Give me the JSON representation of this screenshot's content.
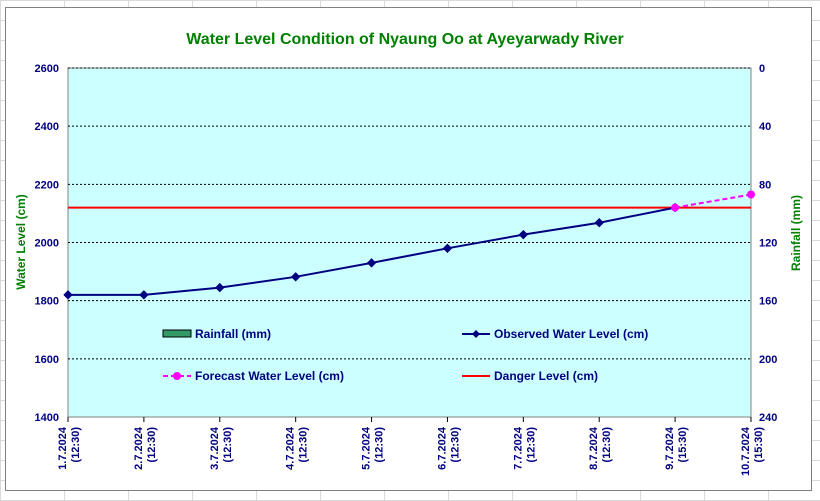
{
  "chart_data": {
    "type": "line",
    "title": "Water Level Condition of Nyaung Oo at Ayeyarwady River",
    "ylabel": "Water Level (cm)",
    "y2label": "Rainfall (mm)",
    "ylim": [
      1400,
      2600
    ],
    "yticks": [
      "1400",
      "1600",
      "1800",
      "2000",
      "2200",
      "2400",
      "2600"
    ],
    "y2lim": [
      0,
      240
    ],
    "y2_inverted": true,
    "y2ticks": [
      "0",
      "40",
      "80",
      "120",
      "160",
      "200",
      "240"
    ],
    "categories": [
      [
        "1.7.2024",
        "(12:30)"
      ],
      [
        "2.7.2024",
        "(12:30)"
      ],
      [
        "3.7.2024",
        "(12:30)"
      ],
      [
        "4.7.2024",
        "(12:30)"
      ],
      [
        "5.7.2024",
        "(12:30)"
      ],
      [
        "6.7.2024",
        "(12:30)"
      ],
      [
        "7.7.2024",
        "(12:30)"
      ],
      [
        "8.7.2024",
        "(12:30)"
      ],
      [
        "9.7.2024",
        "(15:30)"
      ],
      [
        "10.7.2024",
        "(15:30)"
      ]
    ],
    "grid": true,
    "plot_background": "#ccffff",
    "series": [
      {
        "name": "Rainfall (mm)",
        "kind": "bar",
        "color": "#339966",
        "values": [
          null,
          null,
          null,
          null,
          null,
          null,
          null,
          null,
          null,
          null
        ]
      },
      {
        "name": "Observed Water Level (cm)",
        "kind": "line",
        "color": "#000080",
        "marker": "diamond",
        "values": [
          1820,
          1820,
          1845,
          1882,
          1930,
          1980,
          2027,
          2068,
          2120,
          null
        ]
      },
      {
        "name": "Forecast Water Level (cm)",
        "kind": "line",
        "color": "#ff00ff",
        "dashed": true,
        "marker": "circle",
        "values": [
          null,
          null,
          null,
          null,
          null,
          null,
          null,
          null,
          2120,
          2165
        ]
      },
      {
        "name": "Danger Level (cm)",
        "kind": "hline",
        "color": "#ff0000",
        "value": 2120
      }
    ]
  }
}
